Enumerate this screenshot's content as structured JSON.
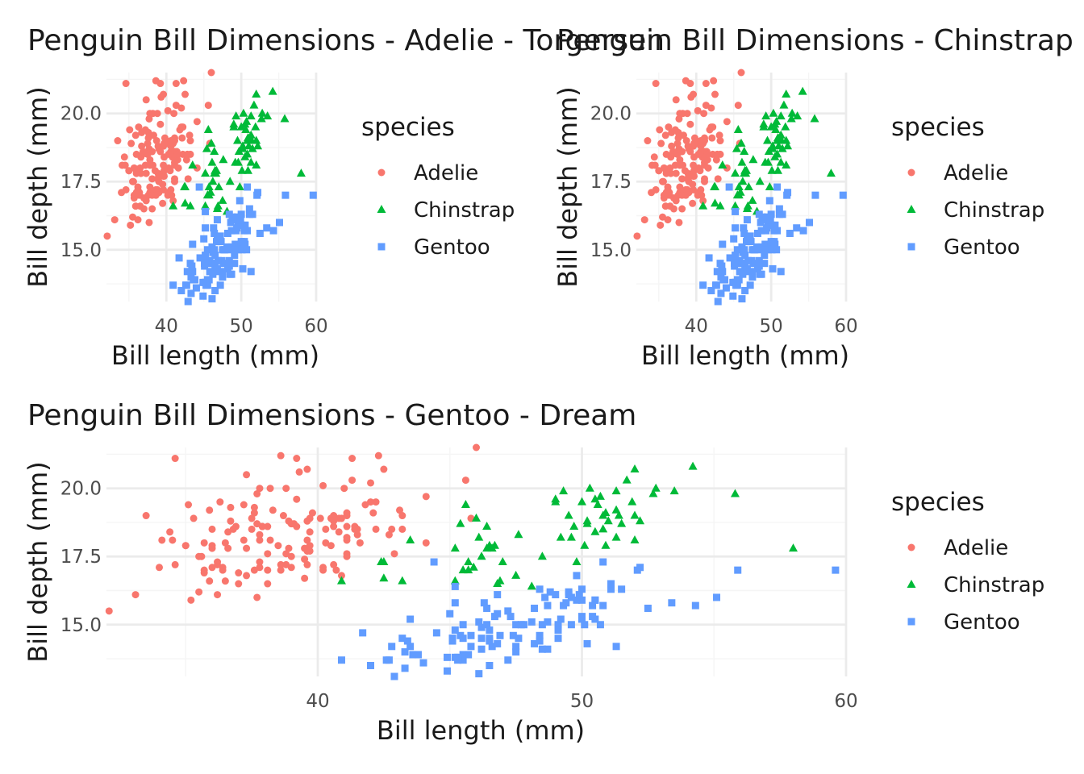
{
  "colors": {
    "Adelie": "#F8766D",
    "Chinstrap": "#00BA38",
    "Gentoo": "#619CFF"
  },
  "legend": {
    "title": "species",
    "entries": [
      "Adelie",
      "Chinstrap",
      "Gentoo"
    ]
  },
  "chart_data": [
    {
      "type": "scatter",
      "title": "Penguin Bill Dimensions - Adelie - Torgersen",
      "xlabel": "Bill length (mm)",
      "ylabel": "Bill depth (mm)",
      "xlim": [
        32,
        60
      ],
      "ylim": [
        13.1,
        21.5
      ],
      "xticks": [
        "40",
        "50",
        "60"
      ],
      "yticks": [
        "15.0",
        "17.5",
        "20.0"
      ],
      "grid": true,
      "legend_position": "right",
      "series": [
        {
          "name": "Adelie",
          "shape": "circle",
          "x": [
            39.1,
            39.5,
            40.3,
            36.7,
            39.3,
            38.9,
            39.2,
            34.1,
            42,
            37.8,
            37.8,
            41.1,
            38.6,
            34.6,
            36.6,
            38.7,
            42.5,
            34.4,
            46,
            37.8,
            37.7,
            35.9,
            38.2,
            38.8,
            35.3,
            40.6,
            40.5,
            37.9,
            40.5,
            39.5,
            37.2,
            39.5,
            40.9,
            36.4,
            39.2,
            38.8,
            42.2,
            37.6,
            39.8,
            36.5,
            40.8,
            36,
            44.1,
            37,
            39.6,
            41.1,
            37.5,
            36,
            42.3,
            39.6,
            40.1,
            35,
            42,
            34.5,
            41.4,
            39,
            40.6,
            36.5,
            37.6,
            35.7,
            41.3,
            37.6,
            41.1,
            36.4,
            41.6,
            35.5,
            41.1,
            35.9,
            41.8,
            33.5,
            39.7,
            39.6,
            45.8,
            35.5,
            42.8,
            40.9,
            37.2,
            36.2,
            42.1,
            34.6,
            42.9,
            36.7,
            35.1,
            37.3,
            41.3,
            36.3,
            36.9,
            38.3,
            38.9,
            35.7,
            41.1,
            34,
            39.6,
            36.2,
            40.8,
            38.1,
            40.3,
            33.1,
            43.2,
            35,
            41,
            37.7,
            37.8,
            37.9,
            39.7,
            38.6,
            38.2,
            38.1,
            43.2,
            38.1,
            45.6,
            39.7,
            42.2,
            39.6,
            42.7,
            38.6,
            37.3,
            35.7,
            41.1,
            36.2,
            37.7,
            40.2,
            41.4,
            35.2,
            40.6,
            38.8,
            41.5,
            39,
            44.1,
            38.5,
            43.1,
            36.8,
            37.5,
            38.1,
            41.1,
            35.6,
            40.2,
            37,
            39.7,
            40.2,
            40.6,
            32.1,
            40.7,
            37.3,
            39,
            39.2,
            36.6,
            36,
            37.8,
            36,
            41.5
          ],
          "y": [
            18.7,
            17.4,
            18,
            19.3,
            20.6,
            17.8,
            19.6,
            18.1,
            20.2,
            17.1,
            17.3,
            17.6,
            21.2,
            21.1,
            17.8,
            19,
            20.7,
            18.4,
            21.5,
            18.3,
            18.7,
            19.2,
            18.1,
            17.2,
            18.9,
            18.6,
            17.9,
            18.6,
            18.9,
            16.7,
            18.1,
            17.8,
            18.9,
            17,
            21.1,
            20,
            18.5,
            19.3,
            19.1,
            18,
            18.4,
            18.5,
            19.7,
            16.9,
            18.8,
            19,
            18.9,
            17.9,
            21.2,
            17.7,
            18.9,
            17.9,
            19.5,
            18.1,
            18.6,
            17.5,
            18.8,
            16.6,
            19.1,
            16.9,
            21.1,
            17,
            18.2,
            17.1,
            18,
            16.2,
            19.1,
            16.6,
            19.4,
            19,
            18.4,
            17.2,
            18.9,
            17.5,
            18.5,
            16.8,
            19.4,
            16.1,
            19.1,
            17.2,
            17.6,
            18.8,
            19.4,
            17.8,
            20.3,
            19.5,
            18.6,
            19.2,
            18.8,
            18,
            18.1,
            17.1,
            18.1,
            17.3,
            18.9,
            18.6,
            18.5,
            16.1,
            18.5,
            17.9,
            20,
            16,
            20,
            18.6,
            18.9,
            17.2,
            20,
            17,
            19,
            16.5,
            20.3,
            17.7,
            19.5,
            20.7,
            18.3,
            17,
            20.5,
            17,
            18.6,
            17.2,
            19.8,
            17,
            18.5,
            15.9,
            19,
            17.6,
            18.3,
            17.1,
            18,
            17.9,
            19.2,
            18.5,
            18.5,
            17.6,
            17.5,
            17.5,
            20.1,
            16.5,
            17.9,
            17.1,
            17.2,
            15.5,
            17,
            16.8,
            18.7,
            18.6,
            18.4,
            17.8,
            18.1,
            17.1,
            18.5
          ]
        },
        {
          "name": "Chinstrap",
          "shape": "triangle",
          "x": [
            46.5,
            50,
            51.3,
            45.4,
            52.7,
            45.2,
            46.1,
            51.3,
            46,
            51.3,
            46.6,
            51.7,
            47,
            52,
            45.9,
            50.5,
            50.3,
            58,
            46.4,
            49.2,
            42.4,
            48.5,
            43.2,
            50.6,
            46.7,
            52,
            50.5,
            49.5,
            46.4,
            52.8,
            40.9,
            54.2,
            42.5,
            51,
            49.7,
            47.5,
            47.6,
            52,
            46.9,
            53.5,
            49,
            46.2,
            50.9,
            45.5,
            50.9,
            50.8,
            50.1,
            49,
            51.5,
            49.8,
            48.1,
            51.4,
            45.7,
            50.7,
            42.5,
            52.2,
            45.2,
            49.3,
            50.2,
            45.6,
            51.9,
            46.8,
            45.7,
            55.8,
            43.5,
            49.6,
            50.8,
            50.2
          ],
          "y": [
            17.9,
            19.5,
            19.2,
            18.7,
            19.8,
            17.8,
            18.2,
            18.2,
            18.9,
            19.9,
            17.8,
            20.3,
            17.3,
            18.1,
            17.1,
            19.6,
            20,
            17.8,
            18.6,
            18.2,
            17.3,
            17.5,
            16.6,
            19.4,
            17.9,
            19,
            18.4,
            19,
            17.8,
            20,
            16.6,
            20.8,
            16.7,
            18.8,
            18.6,
            16.8,
            18.3,
            20.7,
            16.6,
            19.9,
            19.5,
            17.5,
            19.1,
            17,
            17.9,
            18.5,
            17.9,
            19.6,
            18.7,
            17.3,
            16.4,
            19,
            17.3,
            19.7,
            17.3,
            18.8,
            16.6,
            19.9,
            18.8,
            19.4,
            19.5,
            16.5,
            17,
            19.8,
            18.1,
            18.2,
            19,
            18.7
          ]
        },
        {
          "name": "Gentoo",
          "shape": "square",
          "x": [
            46.1,
            50,
            48.7,
            50,
            47.6,
            46.5,
            45.4,
            46.7,
            43.3,
            46.8,
            40.9,
            49,
            45.5,
            48.4,
            45.8,
            49.3,
            42,
            49.2,
            46.2,
            48.7,
            50.2,
            45.1,
            46.5,
            46.3,
            42.9,
            46.1,
            47.8,
            48.2,
            50,
            47.3,
            42.8,
            45.1,
            59.6,
            49.1,
            48.4,
            42.6,
            44.4,
            44,
            48.7,
            42.7,
            49.6,
            45.3,
            49.6,
            50.5,
            43.6,
            45.5,
            50.5,
            44.9,
            45.2,
            46.6,
            48.5,
            45.1,
            50.1,
            46.5,
            45,
            43.8,
            45.5,
            43.2,
            50.4,
            45.3,
            46.2,
            45.7,
            54.3,
            45.8,
            49.8,
            49.5,
            43.5,
            50.7,
            47.7,
            46.4,
            48.2,
            46.5,
            46.4,
            48.6,
            47.5,
            51.1,
            45.2,
            45.2,
            49.1,
            52.5,
            47.4,
            50,
            44.9,
            50.8,
            43.4,
            51.3,
            47.5,
            52.1,
            47.5,
            52.2,
            45.5,
            49.5,
            44.5,
            50.8,
            49.4,
            46.9,
            48.4,
            51.1,
            48.5,
            55.9,
            47.2,
            49.1,
            46.8,
            41.7,
            53.4,
            43.3,
            48.1,
            50.5,
            49.8,
            43.5,
            51.5,
            46.2,
            55.1,
            48.8,
            47.2,
            46.8,
            50.4,
            45.2,
            49.9
          ],
          "y": [
            13.2,
            16.3,
            14.1,
            15.2,
            14.5,
            13.5,
            14.6,
            15.3,
            13.4,
            15.4,
            13.7,
            16.1,
            13.7,
            14.6,
            14.6,
            15.7,
            13.5,
            15.2,
            14.5,
            15.1,
            14.3,
            14.5,
            14.5,
            15.8,
            13.1,
            15.1,
            15,
            14.3,
            15.3,
            15.3,
            14.2,
            14.5,
            17,
            14.8,
            16.3,
            13.7,
            17.3,
            13.6,
            15.7,
            13.7,
            16,
            13.7,
            15,
            15.9,
            13.9,
            13.9,
            15.9,
            13.3,
            15.8,
            14.2,
            14.1,
            14.4,
            15,
            14.4,
            15.4,
            13.9,
            15,
            14.5,
            15.3,
            13.8,
            14.9,
            13.9,
            15.7,
            14.2,
            16.8,
            16.2,
            14.2,
            15,
            15,
            15.6,
            15.6,
            14.8,
            15,
            16,
            14.2,
            16.3,
            13.8,
            16.4,
            14.5,
            15.6,
            14.6,
            15.9,
            13.8,
            17.3,
            14.4,
            14.2,
            14,
            17,
            15,
            17.1,
            14.5,
            16.1,
            14.7,
            15.7,
            15.8,
            14.6,
            14.4,
            16.5,
            15,
            17,
            15.5,
            15,
            16.1,
            14.7,
            15.8,
            14,
            15.1,
            15.2,
            15.9,
            15.2,
            16.3,
            14.1,
            16,
            16.2,
            13.7,
            14.3,
            15.7,
            14.8,
            16.1
          ]
        }
      ]
    },
    {
      "type": "scatter",
      "title": "Penguin Bill Dimensions - Chinstrap - Biscoe",
      "xlabel": "Bill length (mm)",
      "ylabel": "Bill depth (mm)",
      "xlim": [
        32,
        60
      ],
      "ylim": [
        13.1,
        21.5
      ],
      "xticks": [
        "40",
        "50",
        "60"
      ],
      "yticks": [
        "15.0",
        "17.5",
        "20.0"
      ],
      "grid": true,
      "legend_position": "right",
      "same_data_as_panel": 0
    },
    {
      "type": "scatter",
      "title": "Penguin Bill Dimensions - Gentoo - Dream",
      "xlabel": "Bill length (mm)",
      "ylabel": "Bill depth (mm)",
      "xlim": [
        32,
        60
      ],
      "ylim": [
        13.1,
        21.5
      ],
      "xticks": [
        "40",
        "50",
        "60"
      ],
      "yticks": [
        "15.0",
        "17.5",
        "20.0"
      ],
      "grid": true,
      "legend_position": "right",
      "same_data_as_panel": 0
    }
  ]
}
